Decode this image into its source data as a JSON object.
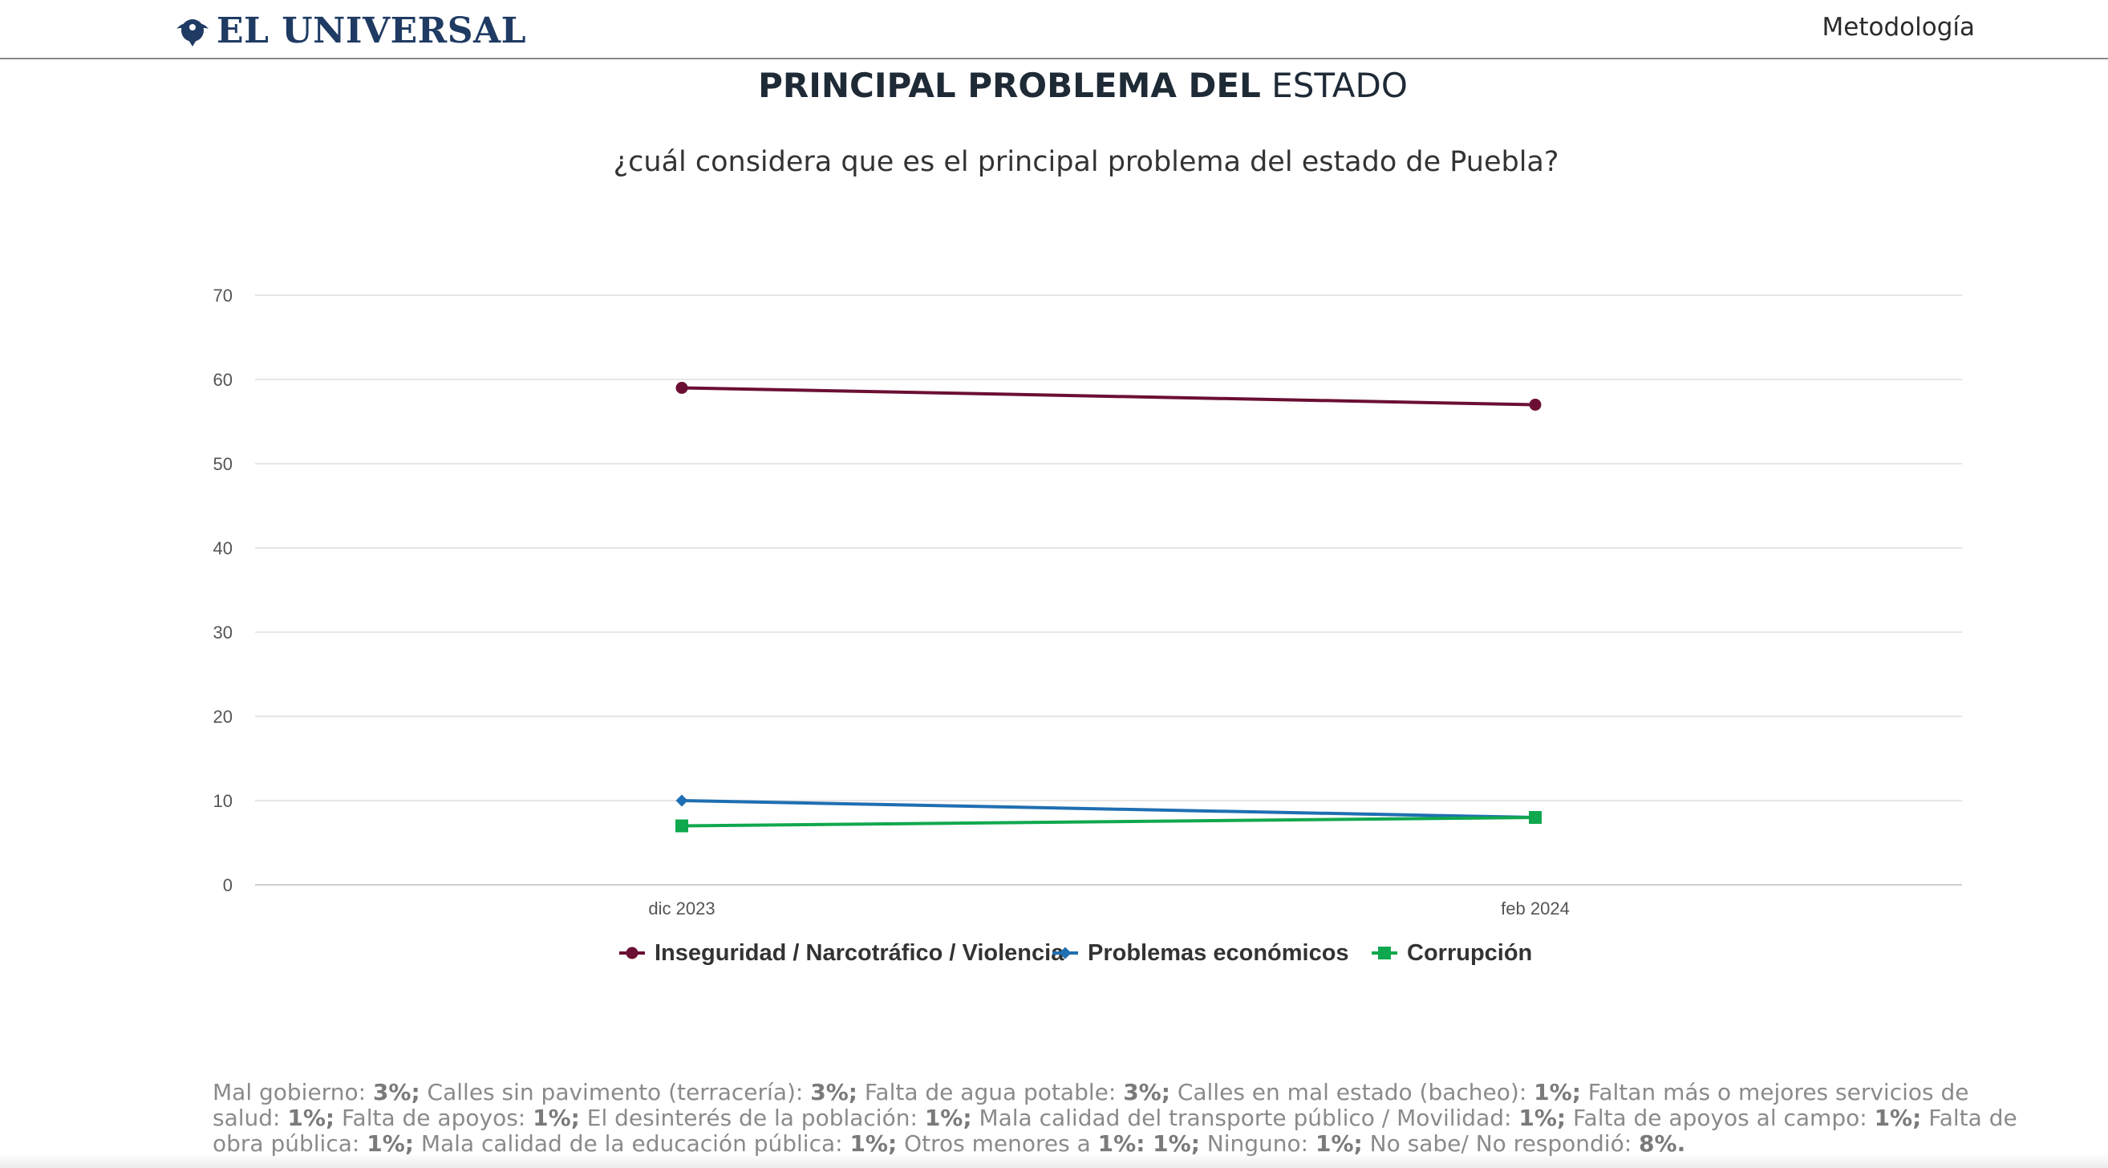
{
  "header": {
    "logo_text": "EL UNIVERSAL",
    "nav_link": "Metodología"
  },
  "chart_data": {
    "type": "line",
    "title_bold": "PRINCIPAL PROBLEMA DEL",
    "title_light": "ESTADO",
    "subtitle": "¿cuál considera que es el principal problema del estado de Puebla?",
    "categories": [
      "dic 2023",
      "feb 2024"
    ],
    "ylim": [
      0,
      70
    ],
    "yticks": [
      0,
      10,
      20,
      30,
      40,
      50,
      60,
      70
    ],
    "grid": true,
    "legend_position": "bottom",
    "series": [
      {
        "name": "Inseguridad / Narcotráfico / Violencia",
        "values": [
          59,
          57
        ],
        "color": "#6b0f34",
        "marker": "circle"
      },
      {
        "name": "Problemas económicos",
        "values": [
          10,
          8
        ],
        "color": "#1f6fb2",
        "marker": "diamond"
      },
      {
        "name": "Corrupción",
        "values": [
          7,
          8
        ],
        "color": "#10a84e",
        "marker": "square"
      }
    ]
  },
  "footnote": [
    {
      "t": "Mal gobierno: "
    },
    {
      "b": "3%;"
    },
    {
      "t": " Calles sin pavimento (terracería): "
    },
    {
      "b": "3%;"
    },
    {
      "t": " Falta de agua potable: "
    },
    {
      "b": "3%;"
    },
    {
      "t": " Calles en mal estado (bacheo): "
    },
    {
      "b": "1%;"
    },
    {
      "t": " Faltan más o mejores servicios de salud: "
    },
    {
      "b": "1%;"
    },
    {
      "t": " Falta de apoyos: "
    },
    {
      "b": "1%;"
    },
    {
      "t": " El desinterés de la población: "
    },
    {
      "b": "1%;"
    },
    {
      "t": " Mala calidad del transporte público / Movilidad: "
    },
    {
      "b": "1%;"
    },
    {
      "t": " Falta de apoyos al campo: "
    },
    {
      "b": "1%;"
    },
    {
      "t": " Falta de obra pública: "
    },
    {
      "b": "1%;"
    },
    {
      "t": " Mala calidad de la educación pública: "
    },
    {
      "b": "1%;"
    },
    {
      "t": " Otros menores a "
    },
    {
      "b": "1%: 1%;"
    },
    {
      "t": " Ninguno: "
    },
    {
      "b": "1%;"
    },
    {
      "t": " No sabe/ No respondió: "
    },
    {
      "b": "8%."
    }
  ]
}
